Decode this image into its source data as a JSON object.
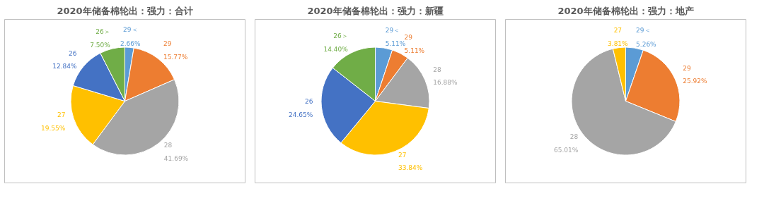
{
  "chart_data": [
    {
      "type": "pie",
      "title": "2020年储备棉轮出：强力：合计",
      "categories": [
        "29＜",
        "29",
        "28",
        "27",
        "26",
        "26＞"
      ],
      "values": [
        2.66,
        15.77,
        41.69,
        19.55,
        12.84,
        7.5
      ],
      "value_labels": [
        "2.66%",
        "15.77%",
        "41.69%",
        "19.55%",
        "12.84%",
        "7.50%"
      ],
      "colors": [
        "#5b9bd5",
        "#ed7d31",
        "#a5a5a5",
        "#ffc000",
        "#4472c4",
        "#70ad47"
      ]
    },
    {
      "type": "pie",
      "title": "2020年储备棉轮出：强力：新疆",
      "categories": [
        "29＜",
        "29",
        "28",
        "27",
        "26",
        "26＞"
      ],
      "values": [
        5.11,
        5.11,
        16.88,
        33.84,
        24.65,
        14.4
      ],
      "value_labels": [
        "5.11%",
        "5.11%",
        "16.88%",
        "33.84%",
        "24.65%",
        "14.40%"
      ],
      "colors": [
        "#5b9bd5",
        "#ed7d31",
        "#a5a5a5",
        "#ffc000",
        "#4472c4",
        "#70ad47"
      ]
    },
    {
      "type": "pie",
      "title": "2020年储备棉轮出：强力：地产",
      "categories": [
        "29＜",
        "29",
        "28",
        "27"
      ],
      "values": [
        5.26,
        25.92,
        65.01,
        3.81
      ],
      "value_labels": [
        "5.26%",
        "25.92%",
        "65.01%",
        "3.81%"
      ],
      "colors": [
        "#5b9bd5",
        "#ed7d31",
        "#a5a5a5",
        "#ffc000"
      ]
    }
  ]
}
